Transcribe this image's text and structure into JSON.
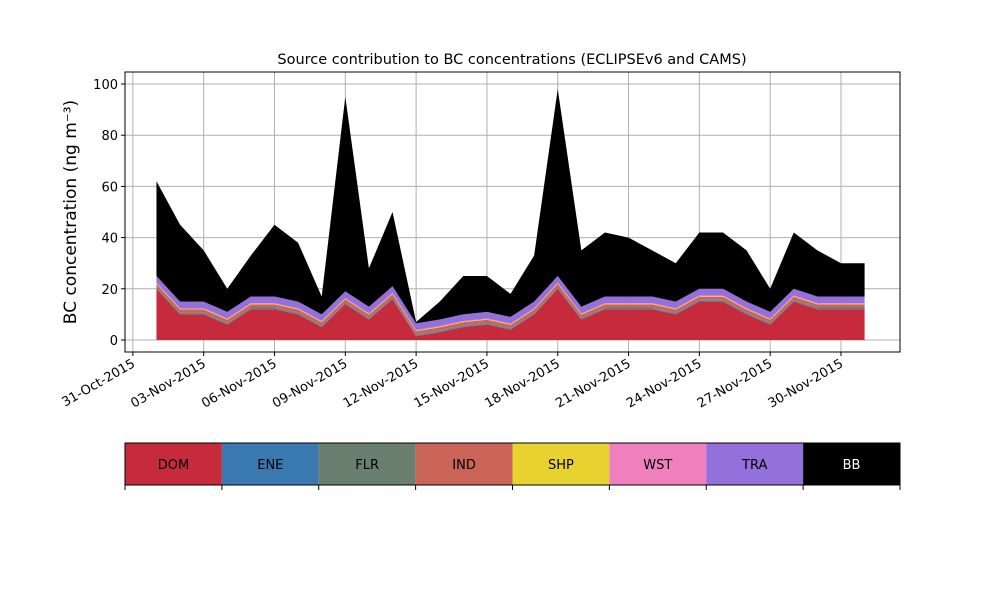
{
  "chart_data": {
    "type": "stacked_area",
    "title": "Source contribution to BC concentrations (ECLIPSEv6 and CAMS)",
    "ylabel": "BC concentration (ng m⁻³)",
    "x": [
      "2015-11-01",
      "2015-11-02",
      "2015-11-03",
      "2015-11-04",
      "2015-11-05",
      "2015-11-06",
      "2015-11-07",
      "2015-11-08",
      "2015-11-09",
      "2015-11-10",
      "2015-11-11",
      "2015-11-12",
      "2015-11-13",
      "2015-11-14",
      "2015-11-15",
      "2015-11-16",
      "2015-11-17",
      "2015-11-18",
      "2015-11-19",
      "2015-11-20",
      "2015-11-21",
      "2015-11-22",
      "2015-11-23",
      "2015-11-24",
      "2015-11-25",
      "2015-11-26",
      "2015-11-27",
      "2015-11-28",
      "2015-11-29",
      "2015-11-30",
      "2015-12-01"
    ],
    "xlim": [
      "2015-10-30T16:00",
      "2015-12-02T12:00"
    ],
    "xticks": [
      {
        "value": "2015-10-31",
        "label": "31-Oct-2015"
      },
      {
        "value": "2015-11-03",
        "label": "03-Nov-2015"
      },
      {
        "value": "2015-11-06",
        "label": "06-Nov-2015"
      },
      {
        "value": "2015-11-09",
        "label": "09-Nov-2015"
      },
      {
        "value": "2015-11-12",
        "label": "12-Nov-2015"
      },
      {
        "value": "2015-11-15",
        "label": "15-Nov-2015"
      },
      {
        "value": "2015-11-18",
        "label": "18-Nov-2015"
      },
      {
        "value": "2015-11-21",
        "label": "21-Nov-2015"
      },
      {
        "value": "2015-11-24",
        "label": "24-Nov-2015"
      },
      {
        "value": "2015-11-27",
        "label": "27-Nov-2015"
      },
      {
        "value": "2015-11-30",
        "label": "30-Nov-2015"
      }
    ],
    "ylim": [
      -4.7,
      104.7
    ],
    "yticks": [
      0,
      20,
      40,
      60,
      80,
      100
    ],
    "grid": true,
    "series": [
      {
        "name": "DOM",
        "color": "#c62a3b",
        "values": [
          20,
          10,
          10,
          6,
          12,
          12,
          10,
          5,
          14,
          8,
          16,
          1.5,
          3,
          5,
          6,
          4,
          10,
          20,
          8,
          12,
          12,
          12,
          10,
          15,
          15,
          10,
          6,
          15,
          12,
          12,
          12
        ]
      },
      {
        "name": "ENE",
        "color": "#3a78b0",
        "values": [
          0.3,
          0.3,
          0.3,
          0.3,
          0.3,
          0.3,
          0.3,
          0.3,
          0.3,
          0.3,
          0.3,
          0.3,
          0.3,
          0.3,
          0.3,
          0.3,
          0.3,
          0.3,
          0.3,
          0.3,
          0.3,
          0.3,
          0.3,
          0.3,
          0.3,
          0.3,
          0.3,
          0.3,
          0.3,
          0.3,
          0.3
        ]
      },
      {
        "name": "FLR",
        "color": "#6b7f6e",
        "values": [
          0.4,
          0.4,
          0.4,
          0.4,
          0.4,
          0.4,
          0.4,
          0.4,
          0.4,
          0.4,
          0.4,
          0.4,
          0.4,
          0.4,
          0.4,
          0.4,
          0.4,
          0.4,
          0.4,
          0.4,
          0.4,
          0.4,
          0.4,
          0.4,
          0.4,
          0.4,
          0.4,
          0.4,
          0.4,
          0.4,
          0.4
        ]
      },
      {
        "name": "IND",
        "color": "#c96456",
        "values": [
          1.2,
          1.2,
          1.2,
          1.2,
          1.2,
          1.2,
          1.2,
          1.2,
          1.2,
          1.2,
          1.2,
          1.2,
          1.2,
          1.2,
          1.2,
          1.2,
          1.2,
          1.2,
          1.2,
          1.2,
          1.2,
          1.2,
          1.2,
          1.2,
          1.2,
          1.2,
          1.2,
          1.2,
          1.2,
          1.2,
          1.2
        ]
      },
      {
        "name": "SHP",
        "color": "#e8d230",
        "values": [
          0.2,
          0.2,
          0.2,
          0.2,
          0.2,
          0.2,
          0.2,
          0.2,
          0.2,
          0.2,
          0.2,
          0.2,
          0.2,
          0.2,
          0.2,
          0.2,
          0.2,
          0.2,
          0.2,
          0.2,
          0.2,
          0.2,
          0.2,
          0.2,
          0.2,
          0.2,
          0.2,
          0.2,
          0.2,
          0.2,
          0.2
        ]
      },
      {
        "name": "WST",
        "color": "#f07fbd",
        "values": [
          0.3,
          0.3,
          0.3,
          0.3,
          0.3,
          0.3,
          0.3,
          0.3,
          0.3,
          0.3,
          0.3,
          0.3,
          0.3,
          0.3,
          0.3,
          0.3,
          0.3,
          0.3,
          0.3,
          0.3,
          0.3,
          0.3,
          0.3,
          0.3,
          0.3,
          0.3,
          0.3,
          0.3,
          0.3,
          0.3,
          0.3
        ]
      },
      {
        "name": "TRA",
        "color": "#9370db",
        "values": [
          2.6,
          2.6,
          2.6,
          2.6,
          2.6,
          2.6,
          2.6,
          2.6,
          2.6,
          2.6,
          2.6,
          2.6,
          2.6,
          2.6,
          2.6,
          2.6,
          2.6,
          2.6,
          2.6,
          2.6,
          2.6,
          2.6,
          2.6,
          2.6,
          2.6,
          2.6,
          2.6,
          2.6,
          2.6,
          2.6,
          2.6
        ]
      },
      {
        "name": "BB",
        "color": "#000000",
        "values": [
          37,
          30,
          20,
          9,
          16,
          28,
          23,
          7,
          76,
          15,
          29,
          0.5,
          7,
          15,
          14,
          9,
          18,
          73,
          22,
          25,
          23,
          18,
          15,
          22,
          22,
          20,
          9,
          22,
          18,
          13,
          13
        ]
      }
    ]
  }
}
